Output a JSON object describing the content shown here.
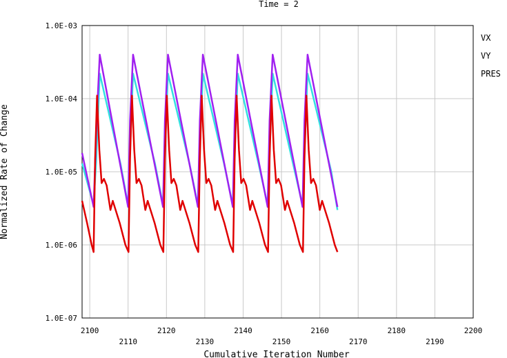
{
  "chart_data": {
    "type": "line",
    "title": "Time = 2",
    "xlabel": "Cumulative Iteration Number",
    "ylabel": "Normalized Rate of Change",
    "xlim": [
      2098,
      2200
    ],
    "ylim": [
      1e-07,
      0.001
    ],
    "yscale": "log",
    "grid": true,
    "legend_position": "right",
    "x_ticks": [
      2100,
      2110,
      2120,
      2130,
      2140,
      2150,
      2160,
      2170,
      2180,
      2190,
      2200
    ],
    "x_tick_labels": [
      "2100",
      "2110",
      "2120",
      "2130",
      "2140",
      "2150",
      "2160",
      "2170",
      "2180",
      "2190",
      "2200"
    ],
    "y_ticks": [
      0.001,
      0.0001,
      1e-05,
      1e-06,
      1e-07
    ],
    "y_tick_labels": [
      "1.0E-03",
      "1.0E-04",
      "1.0E-05",
      "1.0E-06",
      "1.0E-07"
    ],
    "series": [
      {
        "name": "VX",
        "color": "#33e0e0",
        "x": [
          2098,
          2101,
          2101.7,
          2102.6,
          2108,
          2110.0,
          2110.4,
          2111.3,
          2117,
          2119.1,
          2119.5,
          2120.4,
          2126,
          2128.2,
          2128.6,
          2129.5,
          2135,
          2137.3,
          2137.7,
          2138.6,
          2144,
          2146.4,
          2146.8,
          2147.7,
          2153,
          2155.5,
          2155.9,
          2156.8,
          2163,
          2164.6
        ],
        "y": [
          1.3e-05,
          3.5e-06,
          1.5e-05,
          0.00022,
          1.3e-05,
          3.5e-06,
          1.4e-05,
          0.00022,
          1.3e-05,
          3.5e-06,
          1.4e-05,
          0.00022,
          1.3e-05,
          3.5e-06,
          1.4e-05,
          0.00022,
          1.3e-05,
          3.5e-06,
          1.4e-05,
          0.00022,
          1.3e-05,
          3.5e-06,
          1.4e-05,
          0.00022,
          1.3e-05,
          3.5e-06,
          1.4e-05,
          0.00022,
          1e-05,
          3e-06
        ]
      },
      {
        "name": "VY",
        "color": "#a020f0",
        "x": [
          2098,
          2101,
          2101.8,
          2102.6,
          2110.0,
          2110.5,
          2111.3,
          2119.1,
          2119.6,
          2120.4,
          2128.2,
          2128.7,
          2129.5,
          2137.3,
          2137.8,
          2138.6,
          2146.4,
          2146.9,
          2147.7,
          2155.5,
          2156.0,
          2156.8,
          2164.6
        ],
        "y": [
          1.8e-05,
          3.3e-06,
          5e-05,
          0.0004,
          3.3e-06,
          5e-05,
          0.0004,
          3.3e-06,
          5e-05,
          0.0004,
          3.3e-06,
          5e-05,
          0.0004,
          3.3e-06,
          5e-05,
          0.0004,
          3.3e-06,
          5e-05,
          0.0004,
          3.3e-06,
          5e-05,
          0.0004,
          3.3e-06
        ]
      },
      {
        "name": "PRES",
        "color": "#e00000",
        "x": [
          2098,
          2099.3,
          2100.5,
          2101.0,
          2101.4,
          2101.9,
          2102.5,
          2103.1,
          2103.7,
          2104.4,
          2105.4,
          2106.0,
          2107.8,
          2109.3,
          2110.1,
          2110.5,
          2111.0,
          2111.6,
          2112.2,
          2112.8,
          2113.5,
          2114.5,
          2115.1,
          2116.9,
          2118.4,
          2119.2,
          2119.6,
          2120.1,
          2120.7,
          2121.3,
          2121.9,
          2122.6,
          2123.6,
          2124.2,
          2126.0,
          2127.5,
          2128.3,
          2128.7,
          2129.2,
          2129.8,
          2130.4,
          2131.0,
          2131.7,
          2132.7,
          2133.3,
          2135.1,
          2136.6,
          2137.4,
          2137.8,
          2138.3,
          2138.9,
          2139.5,
          2140.1,
          2140.8,
          2141.8,
          2142.4,
          2144.2,
          2145.7,
          2146.5,
          2146.9,
          2147.4,
          2148.0,
          2148.6,
          2149.2,
          2149.9,
          2150.9,
          2151.5,
          2153.3,
          2154.8,
          2155.6,
          2156.0,
          2156.5,
          2157.1,
          2157.7,
          2158.3,
          2159.0,
          2160.0,
          2160.6,
          2162.4,
          2163.9,
          2164.6
        ],
        "y": [
          4e-06,
          2e-06,
          1e-06,
          8e-07,
          1.5e-05,
          0.00011,
          2e-05,
          7e-06,
          8e-06,
          6.5e-06,
          3e-06,
          4e-06,
          2e-06,
          1e-06,
          8e-07,
          1.5e-05,
          0.00011,
          2e-05,
          7e-06,
          8e-06,
          6.5e-06,
          3e-06,
          4e-06,
          2e-06,
          1e-06,
          8e-07,
          1.5e-05,
          0.00011,
          2e-05,
          7e-06,
          8e-06,
          6.5e-06,
          3e-06,
          4e-06,
          2e-06,
          1e-06,
          8e-07,
          1.5e-05,
          0.00011,
          2e-05,
          7e-06,
          8e-06,
          6.5e-06,
          3e-06,
          4e-06,
          2e-06,
          1e-06,
          8e-07,
          1.5e-05,
          0.00011,
          2e-05,
          7e-06,
          8e-06,
          6.5e-06,
          3e-06,
          4e-06,
          2e-06,
          1e-06,
          8e-07,
          1.5e-05,
          0.00011,
          2e-05,
          7e-06,
          8e-06,
          6.5e-06,
          3e-06,
          4e-06,
          2e-06,
          1e-06,
          8e-07,
          1.5e-05,
          0.00011,
          2e-05,
          7e-06,
          8e-06,
          6.5e-06,
          3e-06,
          4e-06,
          2e-06,
          1e-06,
          8e-07
        ]
      }
    ]
  }
}
